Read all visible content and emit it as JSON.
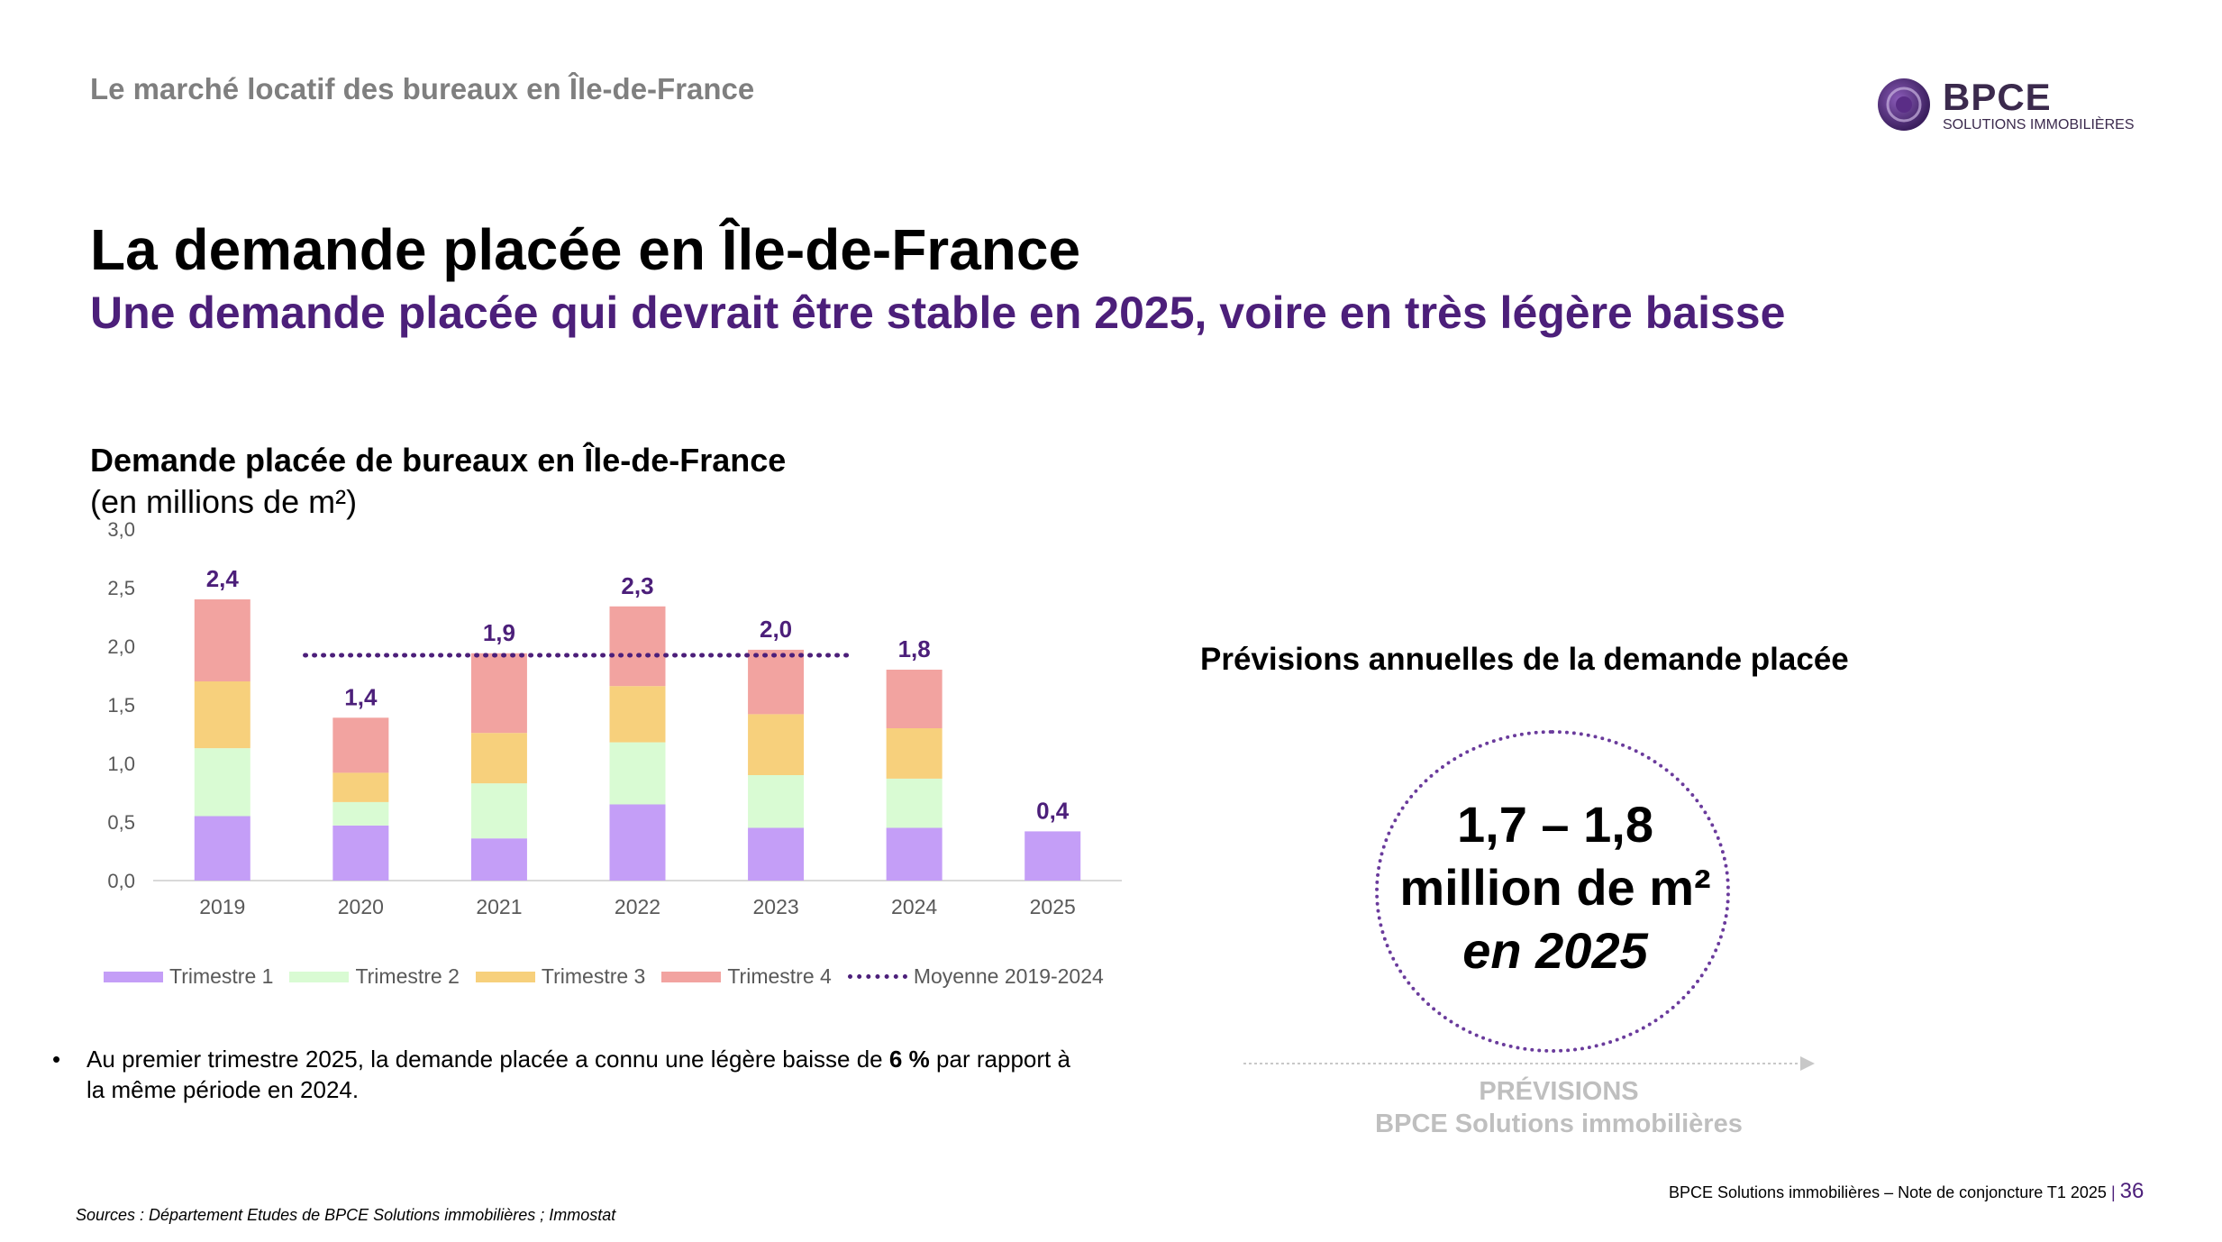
{
  "header": {
    "section_title": "Le marché locatif des bureaux en Île-de-France",
    "logo_name": "BPCE",
    "logo_subtitle": "SOLUTIONS IMMOBILIÈRES"
  },
  "page_title": "La demande placée en Île-de-France",
  "page_subtitle": "Une demande placée qui devrait être stable en 2025, voire en très légère baisse",
  "chart_data": {
    "type": "bar",
    "stacked": true,
    "title": "Demande placée de bureaux en Île-de-France",
    "subtitle": "(en millions de m²)",
    "categories": [
      "2019",
      "2020",
      "2021",
      "2022",
      "2023",
      "2024",
      "2025"
    ],
    "series": [
      {
        "name": "Trimestre 1",
        "color": "#c49ef7",
        "values": [
          0.55,
          0.47,
          0.36,
          0.65,
          0.45,
          0.45,
          0.42
        ]
      },
      {
        "name": "Trimestre 2",
        "color": "#d9fbd3",
        "values": [
          0.58,
          0.2,
          0.47,
          0.53,
          0.45,
          0.42,
          0
        ]
      },
      {
        "name": "Trimestre 3",
        "color": "#f7d07c",
        "values": [
          0.57,
          0.25,
          0.43,
          0.48,
          0.52,
          0.43,
          0
        ]
      },
      {
        "name": "Trimestre 4",
        "color": "#f2a3a0",
        "values": [
          0.7,
          0.47,
          0.68,
          0.68,
          0.55,
          0.5,
          0
        ]
      }
    ],
    "totals": [
      "2,4",
      "1,4",
      "1,9",
      "2,3",
      "2,0",
      "1,8",
      "0,4"
    ],
    "average_line": {
      "name": "Moyenne 2019-2024",
      "value": 1.9,
      "color": "#4c1f7a"
    },
    "ylim": [
      0,
      3.0
    ],
    "yticks": [
      "0,0",
      "0,5",
      "1,0",
      "1,5",
      "2,0",
      "2,5",
      "3,0"
    ],
    "legend_position": "bottom"
  },
  "bullet": {
    "text_before": "Au premier trimestre 2025, la demande placée a connu une légère baisse de ",
    "highlight": "6 %",
    "text_after": " par rapport à la même période en 2024."
  },
  "sources": "Sources : Département Etudes de BPCE Solutions immobilières ; Immostat",
  "forecast": {
    "title": "Prévisions annuelles de la demande placée",
    "line1": "1,7 – 1,8",
    "line2": "million de m²",
    "line3": "en 2025",
    "label_line1": "PRÉVISIONS",
    "label_line2": "BPCE Solutions immobilières"
  },
  "footer": {
    "text": "BPCE Solutions immobilières – Note de conjoncture T1 2025",
    "separator": "|",
    "page_number": "36"
  }
}
